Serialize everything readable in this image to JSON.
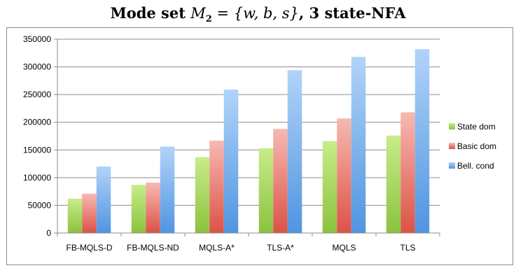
{
  "title": {
    "prefix": "Mode set ",
    "math_symbol": "M",
    "math_sub": "2",
    "math_rest": " = {w, b, s}",
    "suffix": ", 3 state-NFA"
  },
  "chart_data": {
    "type": "bar",
    "title": "Mode set M2 = {w, b, s}, 3 state-NFA",
    "categories": [
      "FB-MQLS-D",
      "FB-MQLS-ND",
      "MQLS-A*",
      "TLS-A*",
      "MQLS",
      "TLS"
    ],
    "series": [
      {
        "name": "State dom",
        "values": [
          62000,
          87000,
          137000,
          153000,
          166000,
          176000
        ],
        "color_top": "#c8ec8a",
        "color_bottom": "#8cc23e"
      },
      {
        "name": "Basic dom",
        "values": [
          71000,
          91000,
          167000,
          188000,
          207000,
          218000
        ],
        "color_top": "#f7b9b2",
        "color_bottom": "#dc5246"
      },
      {
        "name": "Bell. cond",
        "values": [
          120000,
          156000,
          259000,
          294000,
          318000,
          332000
        ],
        "color_top": "#b2d3f9",
        "color_bottom": "#4f95e1"
      }
    ],
    "ylim": [
      0,
      350000
    ],
    "yticks": [
      0,
      50000,
      100000,
      150000,
      200000,
      250000,
      300000,
      350000
    ],
    "ytick_labels": [
      "0",
      "50000",
      "100000",
      "150000",
      "200000",
      "250000",
      "300000",
      "350000"
    ],
    "grid": true,
    "legend_position": "right",
    "xlabel": "",
    "ylabel": ""
  }
}
